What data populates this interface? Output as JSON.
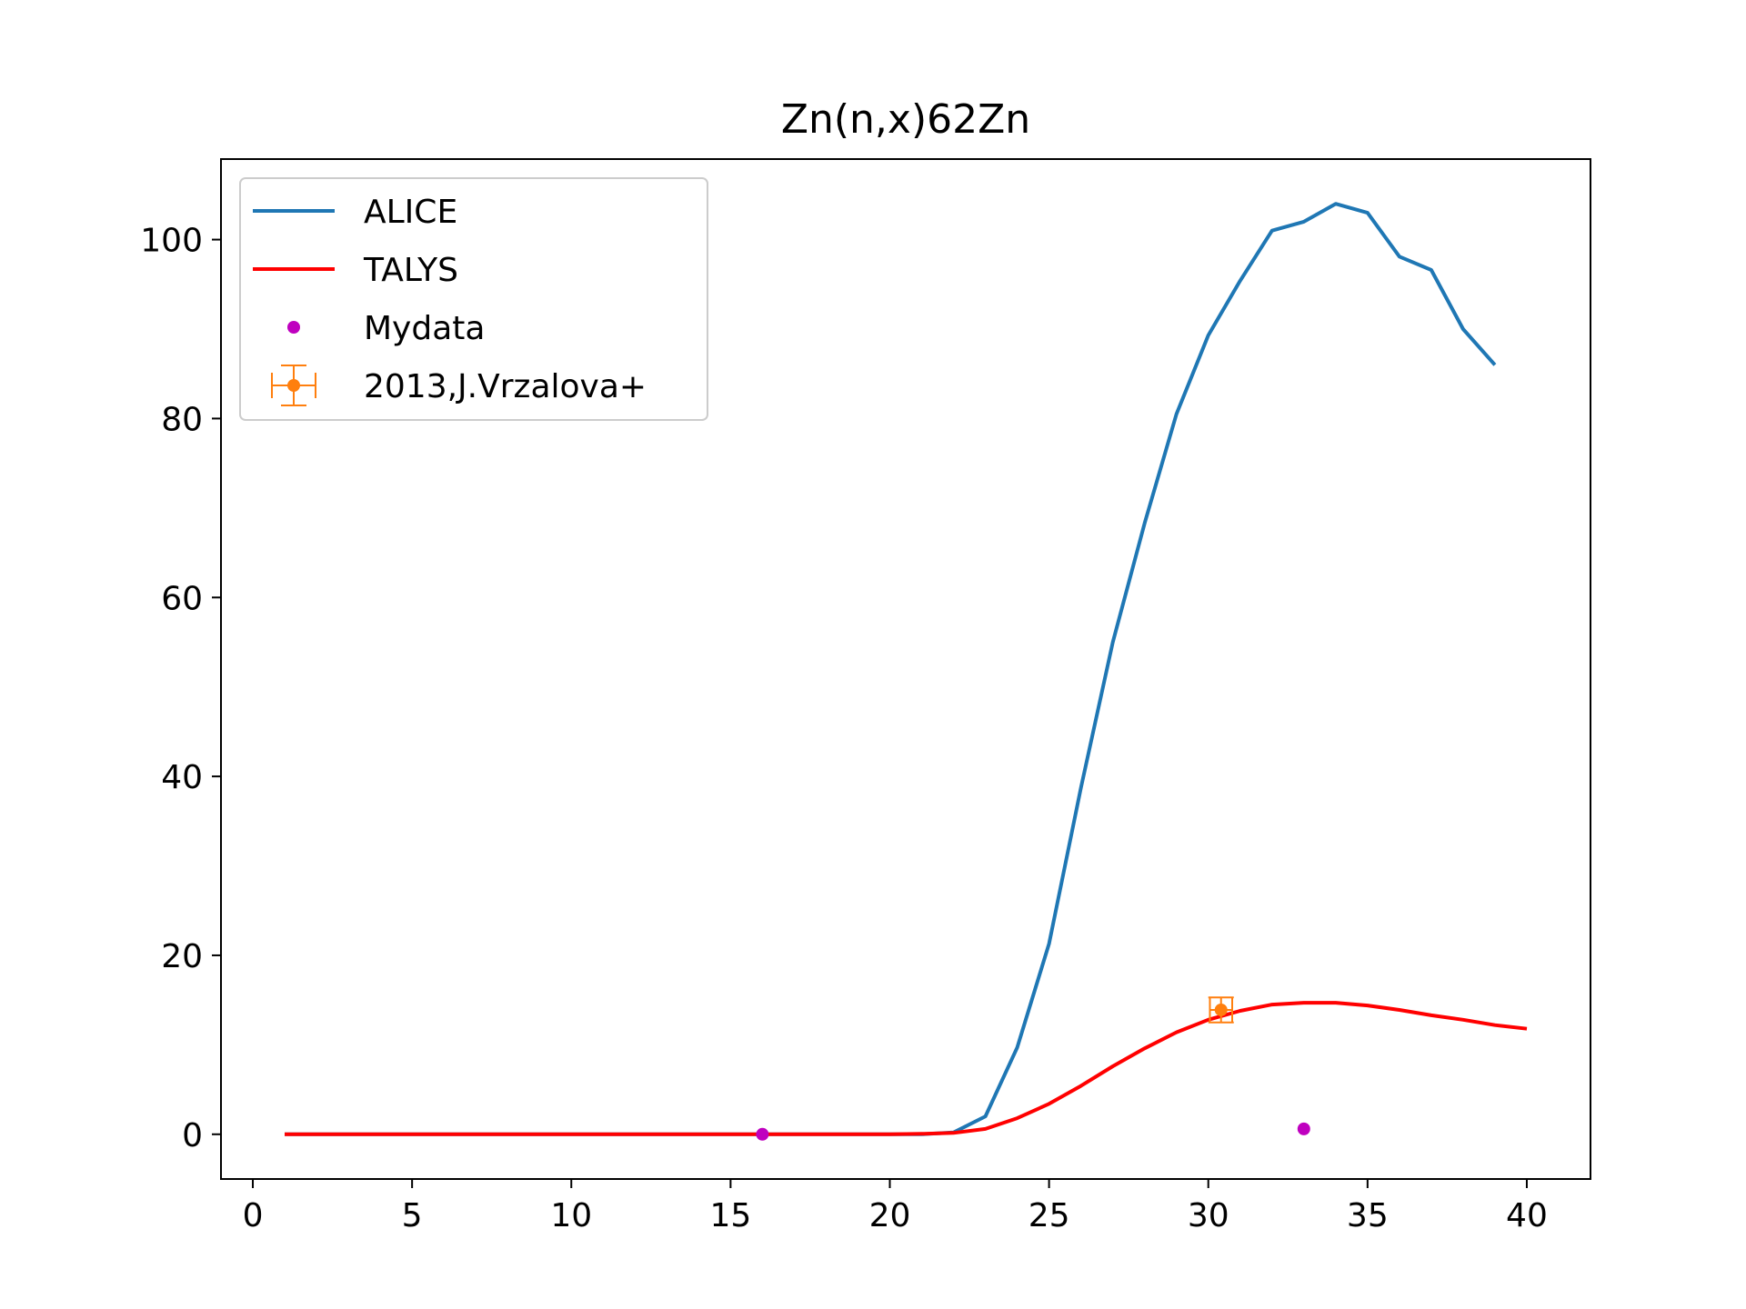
{
  "chart_data": {
    "type": "line",
    "title": "Zn(n,x)62Zn",
    "xlabel": "",
    "ylabel": "",
    "xlim": [
      -1,
      42
    ],
    "ylim": [
      -5,
      109
    ],
    "xticks": [
      0,
      5,
      10,
      15,
      20,
      25,
      30,
      35,
      40
    ],
    "yticks": [
      0,
      20,
      40,
      60,
      80,
      100
    ],
    "grid": false,
    "legend_position": "upper-left",
    "series": [
      {
        "name": "ALICE",
        "kind": "line",
        "color": "#1f77b4",
        "x": [
          1,
          2,
          3,
          4,
          5,
          6,
          7,
          8,
          9,
          10,
          11,
          12,
          13,
          14,
          15,
          16,
          17,
          18,
          19,
          20,
          21,
          22,
          23,
          24,
          25,
          26,
          27,
          28,
          29,
          30,
          31,
          32,
          33,
          34,
          35,
          36,
          37,
          38,
          39
        ],
        "y": [
          0,
          0,
          0,
          0,
          0,
          0,
          0,
          0,
          0,
          0,
          0,
          0,
          0,
          0,
          0,
          0,
          0,
          0,
          0,
          0,
          0,
          0.2,
          2,
          9.7,
          21.3,
          38.7,
          55,
          68.3,
          80.5,
          89.3,
          95.4,
          101,
          102,
          104,
          103,
          98.1,
          96.6,
          90,
          86
        ]
      },
      {
        "name": "TALYS",
        "kind": "line",
        "color": "#ff0000",
        "x": [
          1,
          2,
          3,
          4,
          5,
          6,
          7,
          8,
          9,
          10,
          11,
          12,
          13,
          14,
          15,
          16,
          17,
          18,
          19,
          20,
          21,
          22,
          23,
          24,
          25,
          26,
          27,
          28,
          29,
          30,
          31,
          32,
          33,
          34,
          35,
          36,
          37,
          38,
          39,
          40
        ],
        "y": [
          0,
          0,
          0,
          0,
          0,
          0,
          0,
          0,
          0,
          0,
          0,
          0,
          0,
          0,
          0,
          0,
          0,
          0,
          0,
          0,
          0.05,
          0.15,
          0.6,
          1.8,
          3.4,
          5.4,
          7.6,
          9.6,
          11.4,
          12.8,
          13.8,
          14.5,
          14.7,
          14.7,
          14.4,
          13.9,
          13.3,
          12.8,
          12.2,
          11.8
        ]
      },
      {
        "name": "Mydata",
        "kind": "scatter",
        "color": "#bf00bf",
        "x": [
          16,
          33
        ],
        "y": [
          0,
          0.6
        ]
      },
      {
        "name": "2013,J.Vrzalova+",
        "kind": "errorbar",
        "color": "#ff7f0e",
        "x": [
          30.4
        ],
        "y": [
          13.9
        ],
        "xerr": [
          0.35
        ],
        "yerr": [
          1.4
        ]
      }
    ]
  }
}
